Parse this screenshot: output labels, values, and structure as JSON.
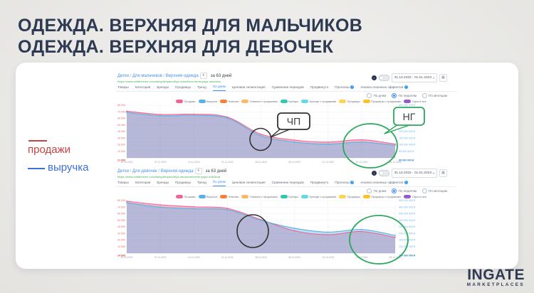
{
  "slide": {
    "title_line1": "ОДЕЖДА. ВЕРХНЯЯ ДЛЯ МАЛЬЧИКОВ",
    "title_line2": "ОДЕЖДА. ВЕРХНЯЯ ДЛЯ ДЕВОЧЕК",
    "side_legend": {
      "sales_label": "продажи",
      "sales_color": "#c84340",
      "revenue_label": "выручка",
      "revenue_color": "#3d6fd8"
    },
    "logo": {
      "name": "INGATE",
      "sub": "MARKETPLACES"
    }
  },
  "annotations": {
    "chp": {
      "label": "ЧП",
      "color": "#2f2f2f"
    },
    "ng": {
      "label": "НГ",
      "color": "#2aa85c"
    }
  },
  "dashboards": [
    {
      "breadcrumb": [
        "Детки",
        "Для мальчиков",
        "Верхняя одежда"
      ],
      "period_label": "за 63 дней",
      "url": "https://www.wildberries.ru/catalog/detyam/dlya-malchikov/verhnyaya-odezhda",
      "tabs": [
        "Товары",
        "Категории",
        "Бренды",
        "Продавцы",
        "Тренд",
        "По дням",
        "Ценовая сегментация",
        "Сравнение периодов",
        "Продвинуто",
        "Прогнозы",
        "Анализ сезонных эффектов"
      ],
      "active_tab": "По дням",
      "badge_tabs": [
        "Прогнозы",
        "Анализ сезонных эффектов"
      ],
      "info_icon": "i",
      "date_range": "31.10.2022 - 01.01.2023",
      "granularity": {
        "options": [
          "По дням",
          "По неделям",
          "По месяцам"
        ],
        "selected": "По неделям"
      },
      "legend": [
        {
          "label": "Продажи",
          "color": "#f2638f"
        },
        {
          "label": "Выручка",
          "color": "#56b3e8"
        },
        {
          "label": "Новинки",
          "color": "#f98035"
        },
        {
          "label": "Новинки с продажами",
          "color": "#ffb765"
        },
        {
          "label": "Бренды",
          "color": "#2ec9b0"
        },
        {
          "label": "Бренды с продажами",
          "color": "#63d9e6"
        },
        {
          "label": "Продавцы",
          "color": "#ffd54f"
        },
        {
          "label": "Продавцы с продажами",
          "color": "#ffc123"
        },
        {
          "label": "Скрыть все",
          "color": "#9b59d0"
        }
      ],
      "chart_data": {
        "type": "area",
        "x": [
          "31.10.2022",
          "07.11.2022",
          "14.11.2022",
          "21.11.2022",
          "28.11.2022",
          "05.12.2022",
          "12.12.2022",
          "19.12.2022",
          "26.12.2022"
        ],
        "series": [
          {
            "name": "Продажи",
            "color": "#f2638f",
            "values": [
              71000,
              66000,
              66500,
              62000,
              36000,
              27000,
              24000,
              27500,
              21000
            ]
          },
          {
            "name": "Выручка",
            "color": "#56b3e8",
            "values": [
              69000,
              64000,
              64500,
              60500,
              33500,
              24000,
              21000,
              24000,
              19000
            ]
          }
        ],
        "ylim_left": [
          0,
          80000
        ],
        "left_ticks": [
          "80 000",
          "70 000",
          "60 000",
          "50 000",
          "40 000",
          "30 000",
          "20 000",
          "10 000"
        ],
        "right_ticks": [
          "400 000 000 ₽",
          "350 000 000 ₽",
          "300 000 000 ₽",
          "250 000 000 ₽",
          "200 000 000 ₽",
          "150 000 000 ₽",
          "100 000 000 ₽",
          "50 000 000 ₽"
        ],
        "left_current": "21 000",
        "right_current": "95 000 000 ₽"
      }
    },
    {
      "breadcrumb": [
        "Детки",
        "Для девочек",
        "Верхняя одежда"
      ],
      "period_label": "за 63 дней",
      "url": "https://www.wildberries.ru/catalog/detyam/dlya-devochek/verhnyaya-odezhda",
      "tabs": [
        "Товары",
        "Категории",
        "Бренды",
        "Продавцы",
        "Тренд",
        "По дням",
        "Ценовая сегментация",
        "Сравнение периодов",
        "Продвинуто",
        "Прогнозы",
        "Анализ сезонных эффектов"
      ],
      "active_tab": "По дням",
      "badge_tabs": [
        "Прогнозы",
        "Анализ сезонных эффектов"
      ],
      "info_icon": "i",
      "date_range": "31.10.2022 - 01.01.2023",
      "granularity": {
        "options": [
          "По дням",
          "По неделям",
          "По месяцам"
        ],
        "selected": "По неделям"
      },
      "legend": [
        {
          "label": "Продажи",
          "color": "#f2638f"
        },
        {
          "label": "Выручка",
          "color": "#56b3e8"
        },
        {
          "label": "Новинки",
          "color": "#f98035"
        },
        {
          "label": "Новинки с продажами",
          "color": "#ffb765"
        },
        {
          "label": "Бренды",
          "color": "#2ec9b0"
        },
        {
          "label": "Бренды с продажами",
          "color": "#63d9e6"
        },
        {
          "label": "Продавцы",
          "color": "#ffd54f"
        },
        {
          "label": "Продавцы с продажами",
          "color": "#ffc123"
        },
        {
          "label": "Скрыть все",
          "color": "#9b59d0"
        }
      ],
      "chart_data": {
        "type": "area",
        "x": [
          "31.10.2022",
          "07.11.2022",
          "14.11.2022",
          "21.11.2022",
          "28.11.2022",
          "05.12.2022",
          "12.12.2022",
          "19.12.2022",
          "26.12.2022"
        ],
        "series": [
          {
            "name": "Продажи",
            "color": "#f2638f",
            "values": [
              79000,
              73500,
              70500,
              68000,
              51000,
              34000,
              28000,
              33000,
              24000
            ]
          },
          {
            "name": "Выручка",
            "color": "#56b3e8",
            "values": [
              76500,
              70000,
              67500,
              66000,
              50000,
              38000,
              32000,
              36000,
              27000
            ]
          }
        ],
        "ylim_left": [
          0,
          80000
        ],
        "left_ticks": [
          "80 000",
          "70 000",
          "60 000",
          "50 000",
          "40 000",
          "30 000",
          "20 000",
          "10 000"
        ],
        "right_ticks": [
          "450 000 000 ₽",
          "400 000 000 ₽",
          "350 000 000 ₽",
          "300 000 000 ₽",
          "250 000 000 ₽",
          "200 000 000 ₽",
          "150 000 000 ₽",
          "100 000 000 ₽"
        ],
        "left_current": "24 000",
        "right_current": "150 000 000 ₽"
      }
    }
  ]
}
